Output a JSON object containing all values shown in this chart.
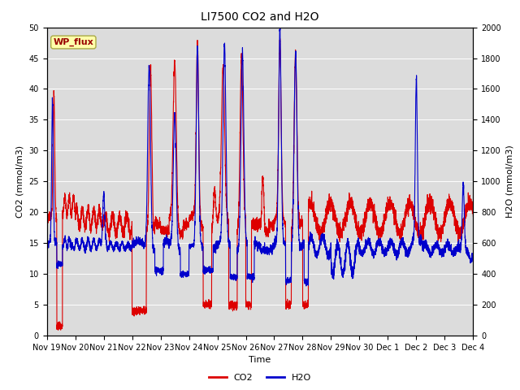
{
  "title": "LI7500 CO2 and H2O",
  "xlabel": "Time",
  "ylabel_left": "CO2 (mmol/m3)",
  "ylabel_right": "H2O (mmol/m3)",
  "ylim_left": [
    0,
    50
  ],
  "ylim_right": [
    0,
    2000
  ],
  "x_tick_labels": [
    "Nov 19",
    "Nov 20",
    "Nov 21",
    "Nov 22",
    "Nov 23",
    "Nov 24",
    "Nov 25",
    "Nov 26",
    "Nov 27",
    "Nov 28",
    "Nov 29",
    "Nov 30",
    "Dec 1",
    "Dec 2",
    "Dec 3",
    "Dec 4"
  ],
  "co2_color": "#dd0000",
  "h2o_color": "#0000cc",
  "background_color": "#dcdcdc",
  "legend_label_co2": "CO2",
  "legend_label_h2o": "H2O",
  "wp_flux_label": "WP_flux",
  "wp_flux_bg": "#ffffaa",
  "wp_flux_border": "#aaaa44",
  "wp_flux_text": "#990000",
  "line_width": 0.8,
  "title_fontsize": 10,
  "axis_fontsize": 8,
  "tick_fontsize": 7
}
